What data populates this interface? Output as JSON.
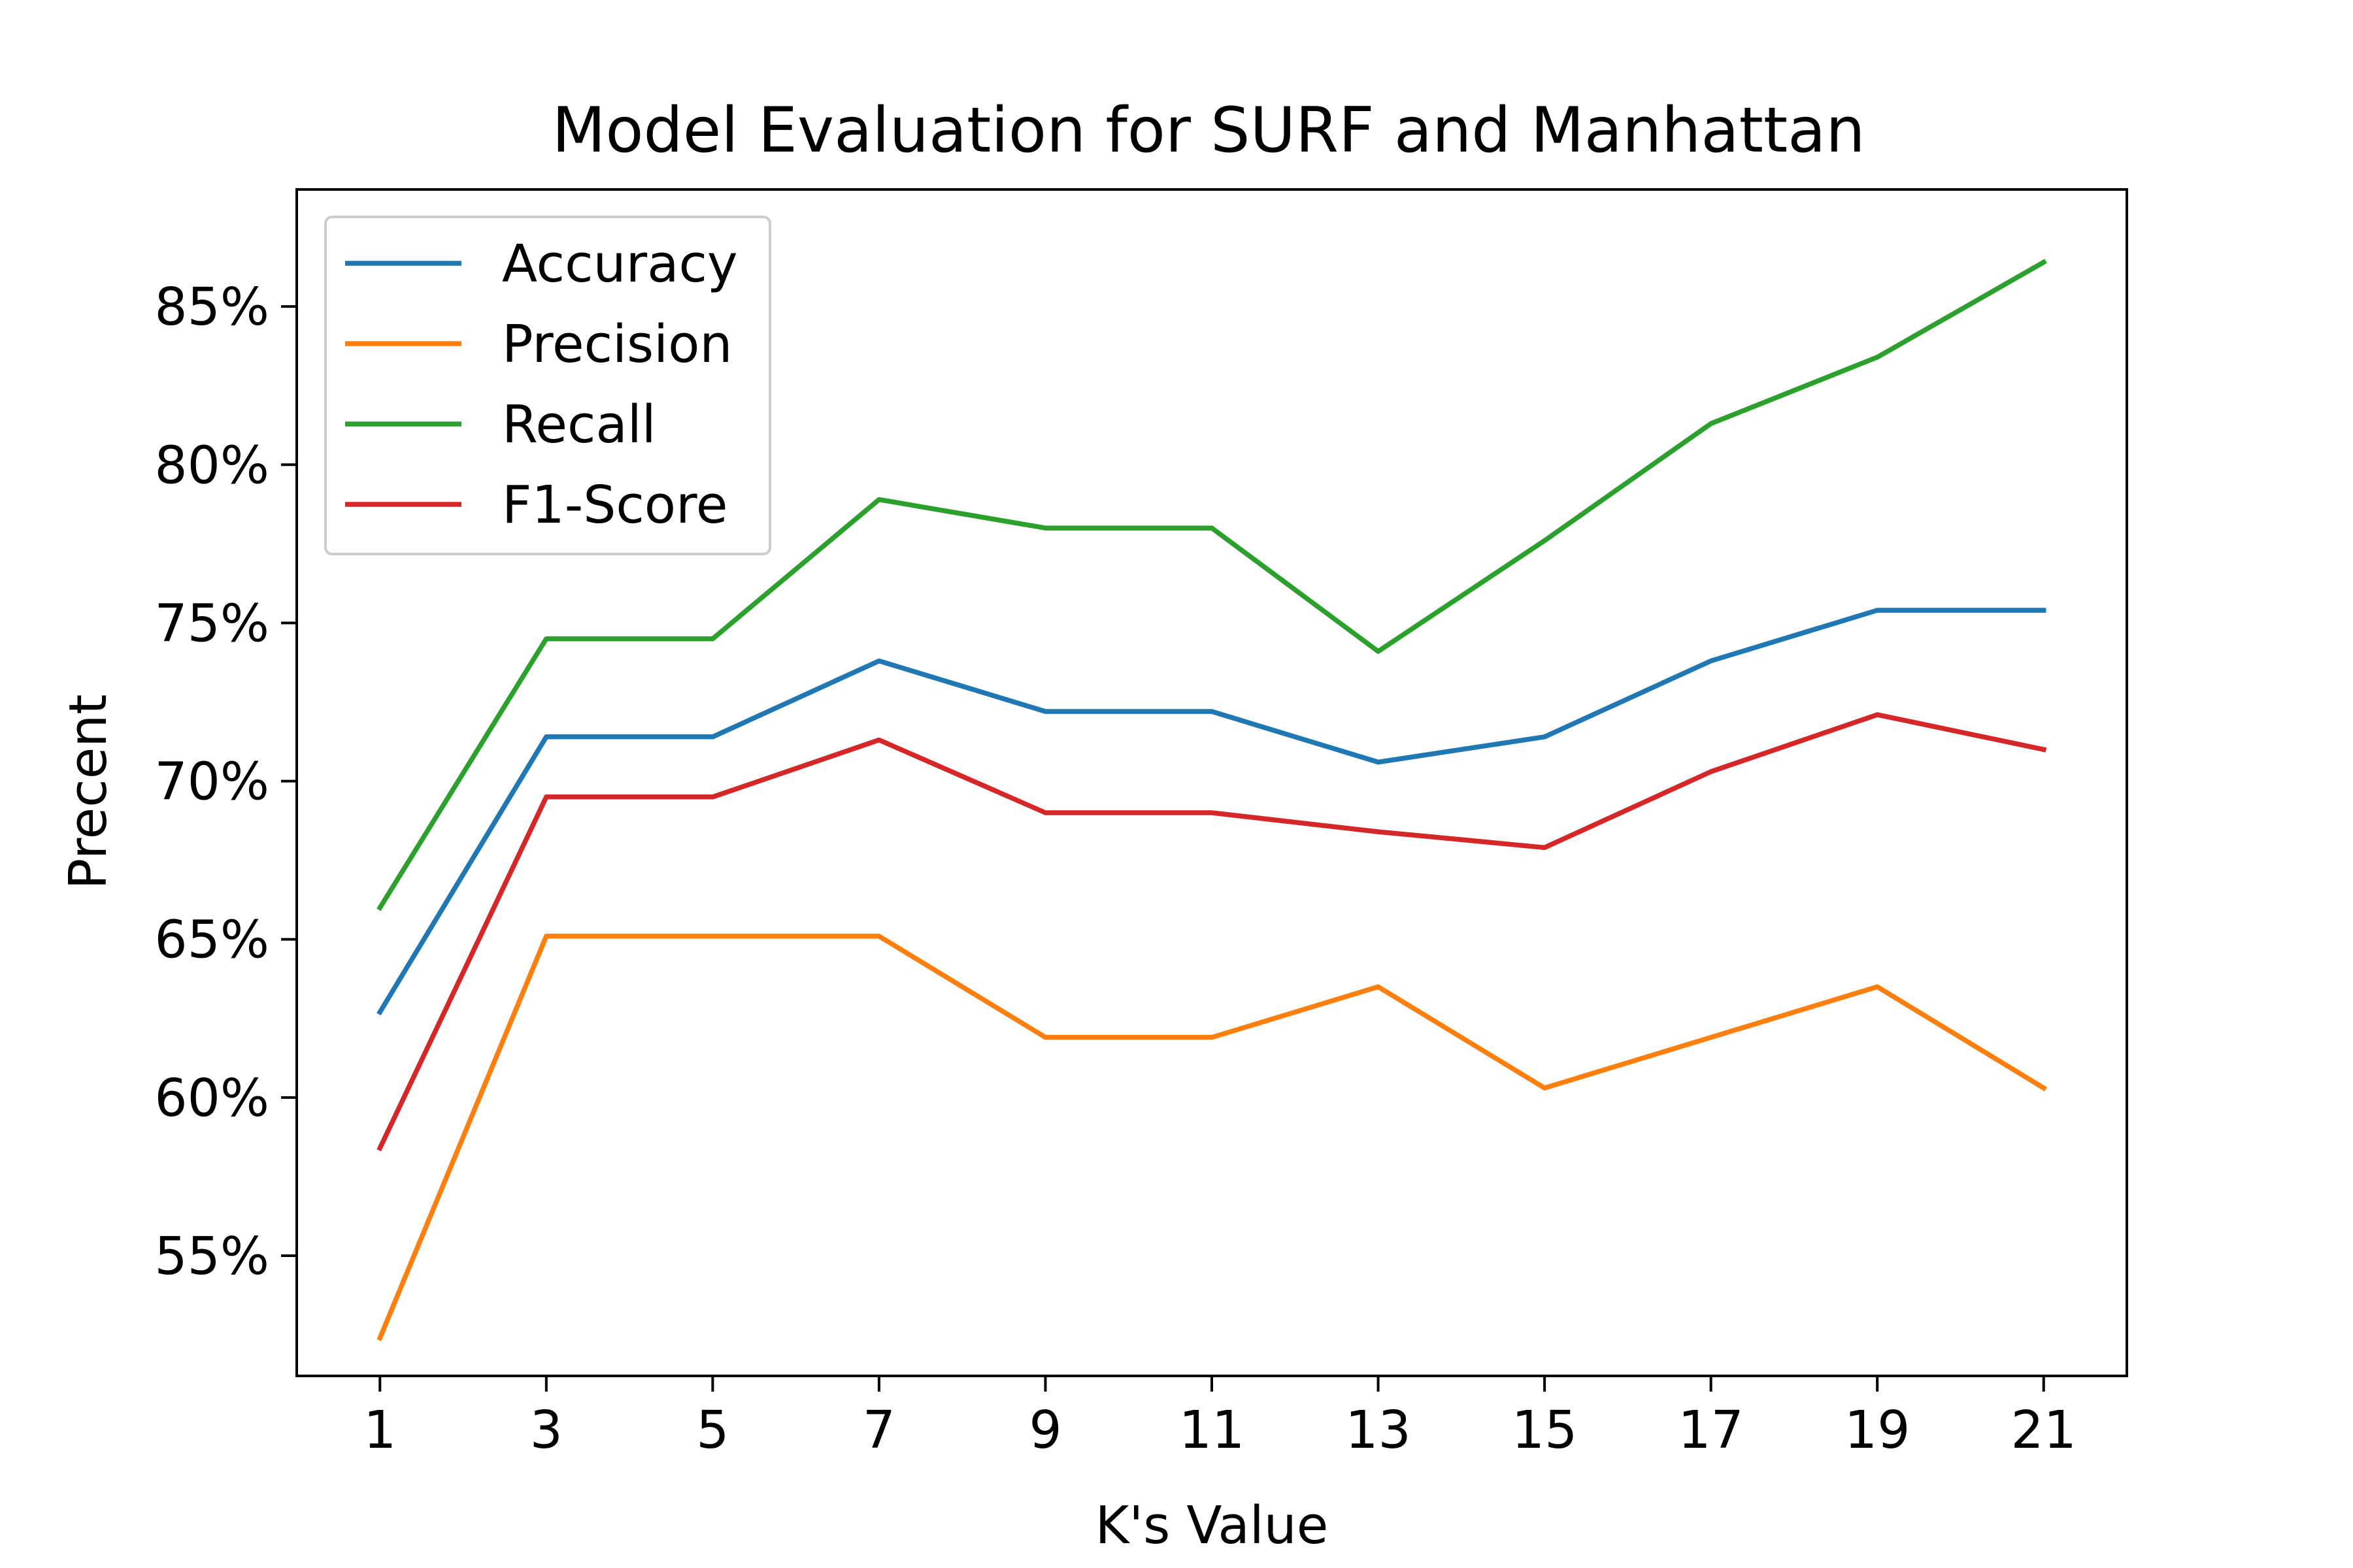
{
  "chart_data": {
    "type": "line",
    "title": "Model Evaluation for SURF and Manhattan",
    "xlabel": "K's Value",
    "ylabel": "Precent",
    "x": [
      1,
      3,
      5,
      7,
      9,
      11,
      13,
      15,
      17,
      19,
      21
    ],
    "x_tick_labels": [
      "1",
      "3",
      "5",
      "7",
      "9",
      "11",
      "13",
      "15",
      "17",
      "19",
      "21"
    ],
    "y_ticks": [
      55,
      60,
      65,
      70,
      75,
      80,
      85
    ],
    "y_tick_labels": [
      "55%",
      "60%",
      "65%",
      "70%",
      "75%",
      "80%",
      "85%"
    ],
    "xlim": [
      -0.0,
      22.0
    ],
    "ylim": [
      51.2,
      88.7
    ],
    "grid": false,
    "legend_position": "upper-left",
    "series": [
      {
        "name": "Accuracy",
        "color": "#1f77b4",
        "values": [
          62.7,
          71.4,
          71.4,
          73.8,
          72.2,
          72.2,
          70.6,
          71.4,
          73.8,
          75.4,
          75.4
        ]
      },
      {
        "name": "Precision",
        "color": "#ff7f0e",
        "values": [
          52.4,
          65.1,
          65.1,
          65.1,
          61.9,
          61.9,
          63.5,
          60.3,
          61.9,
          63.5,
          60.3
        ]
      },
      {
        "name": "Recall",
        "color": "#2ca02c",
        "values": [
          66.0,
          74.5,
          74.5,
          78.9,
          78.0,
          78.0,
          74.1,
          77.6,
          81.3,
          83.4,
          86.4
        ]
      },
      {
        "name": "F1-Score",
        "color": "#d62728",
        "values": [
          58.4,
          69.5,
          69.5,
          71.3,
          69.0,
          69.0,
          68.4,
          67.9,
          70.3,
          72.1,
          71.0
        ]
      }
    ]
  }
}
